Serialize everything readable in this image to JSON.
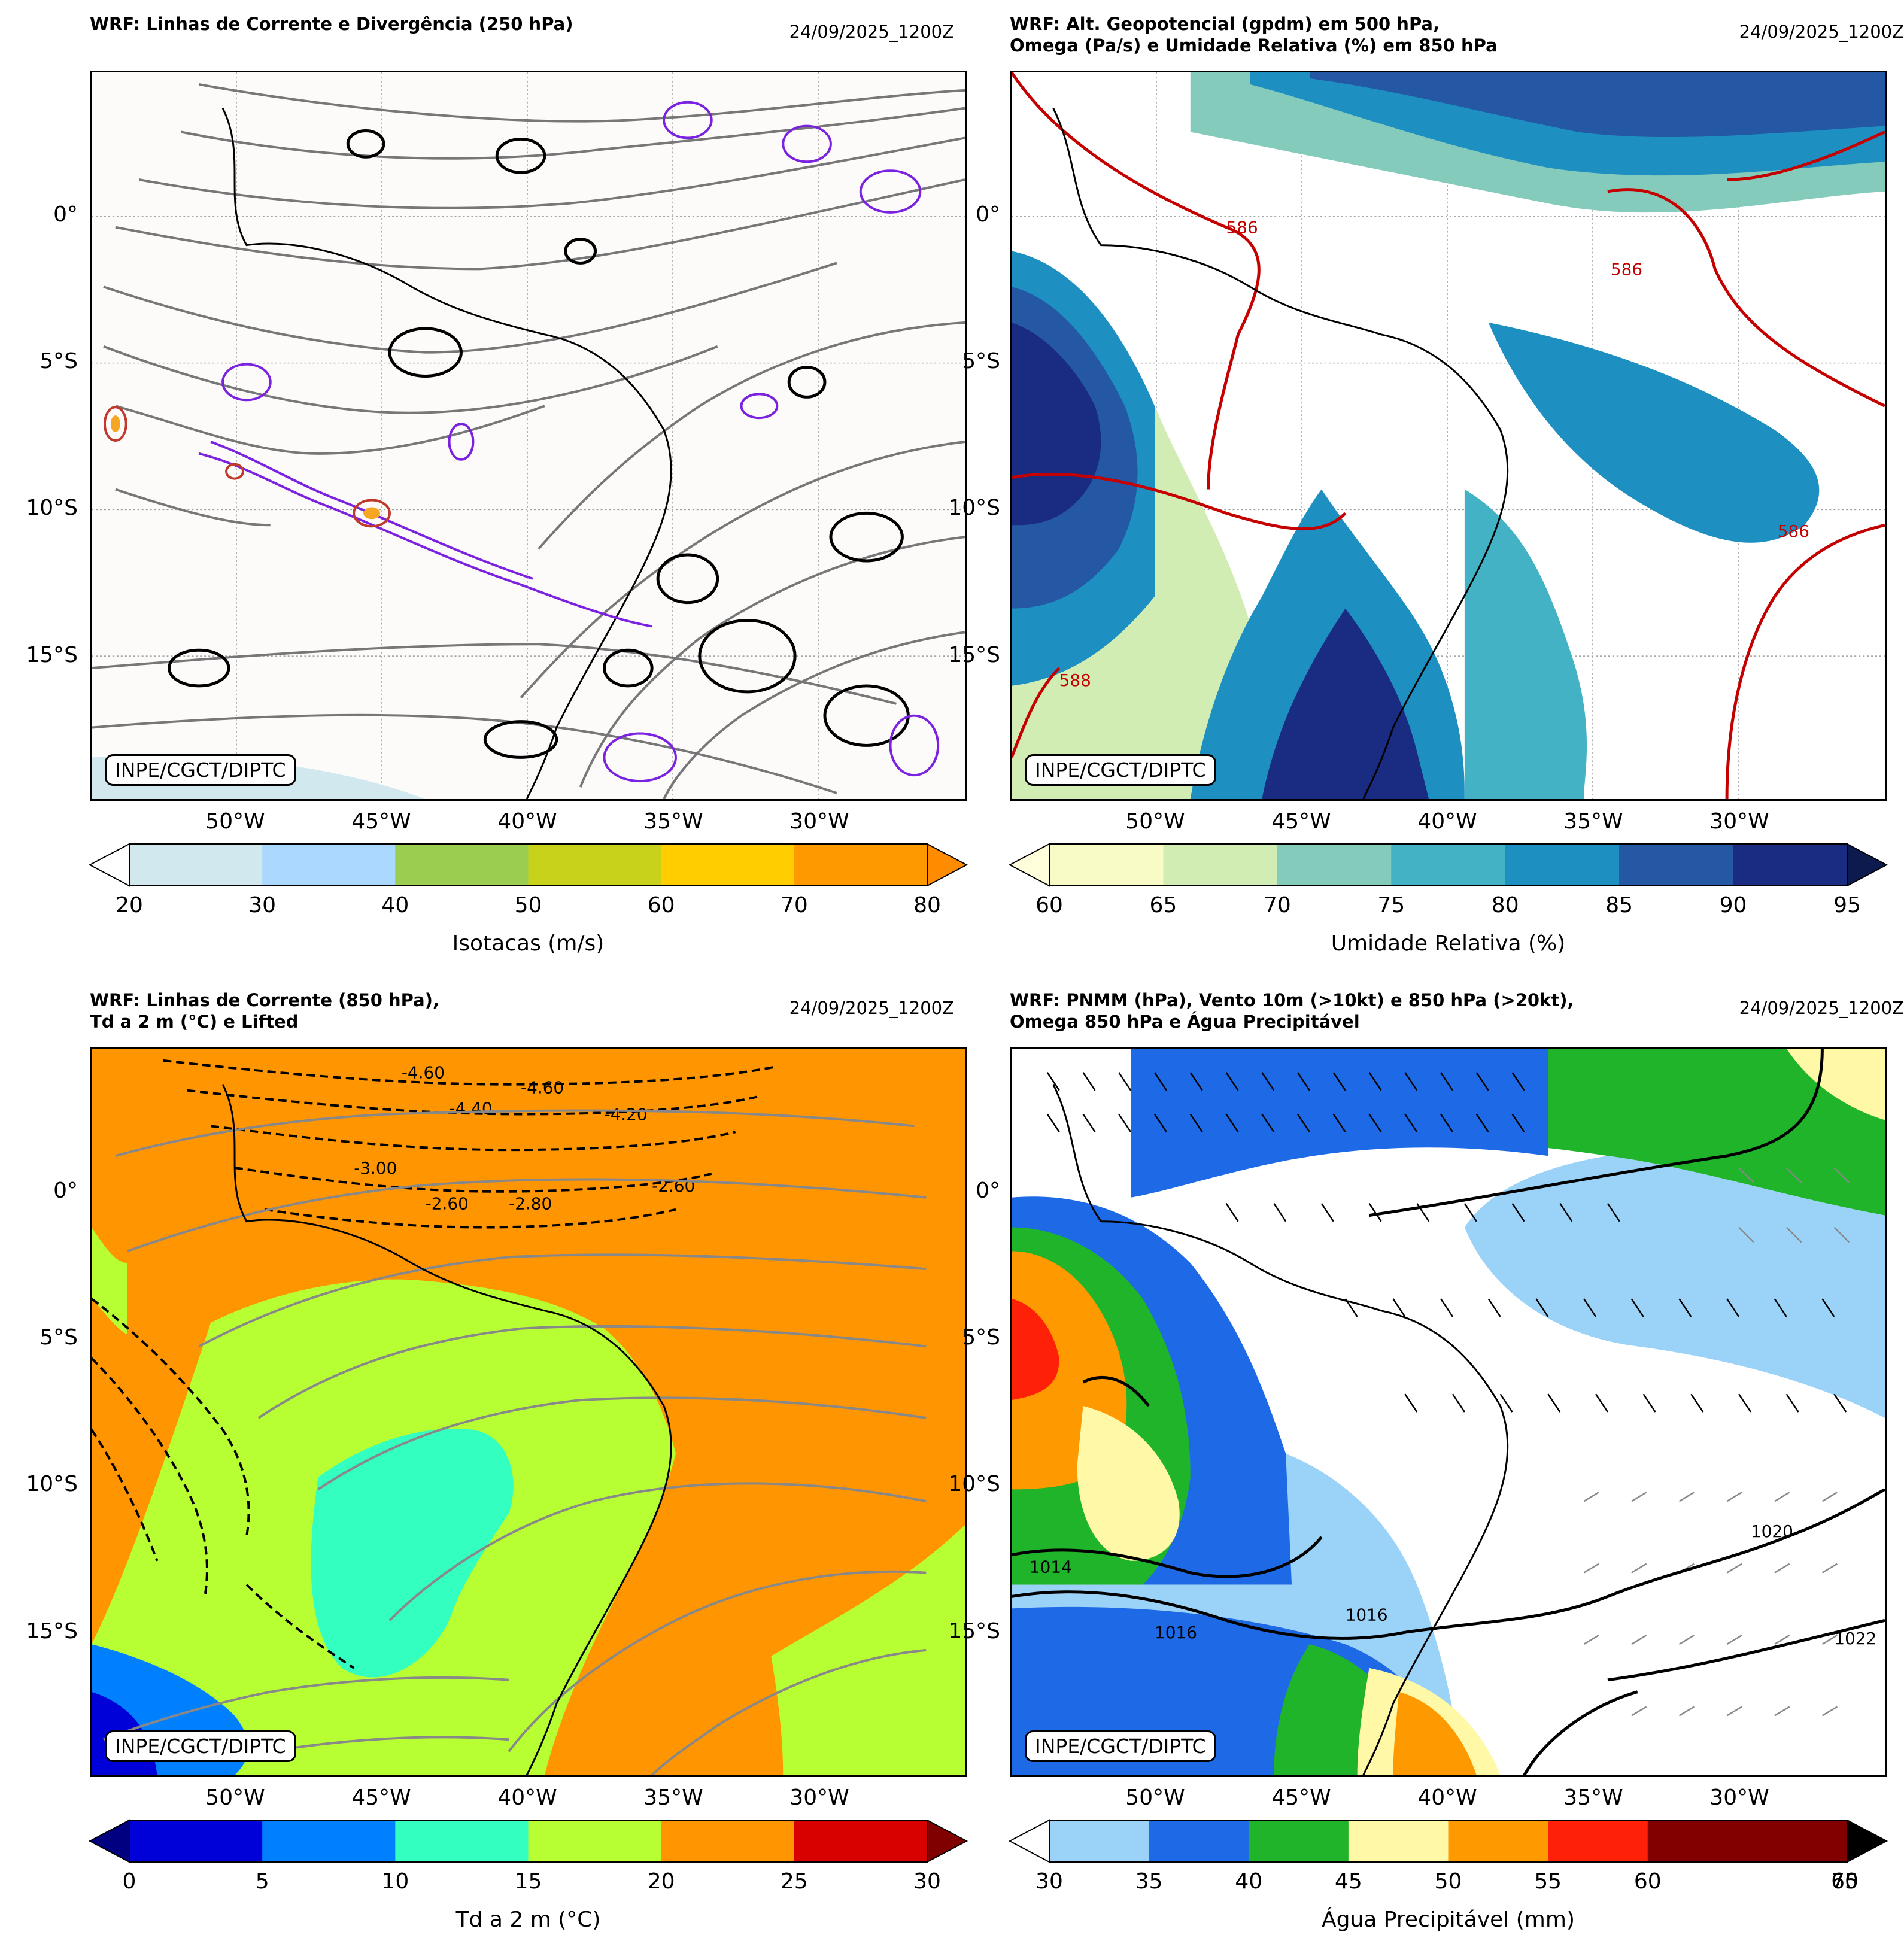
{
  "lat_labels": [
    "0°",
    "5°S",
    "10°S",
    "15°S"
  ],
  "lon_labels": [
    "50°W",
    "45°W",
    "40°W",
    "35°W",
    "30°W"
  ],
  "credit": "INPE/CGCT/DIPTC",
  "panels": {
    "tl": {
      "title": "WRF: Linhas de Corrente e Divergência (250 hPa)",
      "stamp": "24/09/2025_1200Z",
      "cbar_label": "Isotacas (m/s)",
      "cbar_ticks": [
        "20",
        "30",
        "40",
        "50",
        "60",
        "70",
        "80"
      ],
      "cbar_colors": [
        "#d1e8ee",
        "#aad8ff",
        "#9acd50",
        "#c8d21a",
        "#ffcd00",
        "#ff9900"
      ]
    },
    "tr": {
      "title": "WRF: Alt. Geopotencial (gpdm) em 500 hPa,\nOmega (Pa/s) e Umidade Relativa (%) em 850 hPa",
      "stamp": "24/09/2025_1200Z",
      "cbar_label": "Umidade Relativa (%)",
      "cbar_ticks": [
        "60",
        "65",
        "70",
        "75",
        "80",
        "85",
        "90",
        "95"
      ],
      "cbar_colors": [
        "#f8fbc6",
        "#d2edb3",
        "#84cbbb",
        "#42b2c4",
        "#1d8fc0",
        "#2457a4",
        "#1a2c82"
      ],
      "contour_labels": [
        "586",
        "586",
        "586",
        "588"
      ]
    },
    "bl": {
      "title": "WRF: Linhas de Corrente (850 hPa),\nTd a 2 m (°C) e Lifted",
      "stamp": "24/09/2025_1200Z",
      "cbar_label": "Td a 2 m (°C)",
      "cbar_ticks": [
        "0",
        "5",
        "10",
        "15",
        "20",
        "25",
        "30"
      ],
      "cbar_colors": [
        "#0000d8",
        "#0080ff",
        "#33ffc0",
        "#b7ff33",
        "#ff9500",
        "#d90000"
      ],
      "contour_labels": [
        "-4.60",
        "-4.40",
        "-4.60",
        "-4.20",
        "-3.00",
        "-2.60",
        "-2.80",
        "-2.60"
      ]
    },
    "br": {
      "title": "WRF: PNMM (hPa), Vento 10m (>10kt) e 850 hPa (>20kt),\nOmega 850 hPa e Água Precipitável",
      "stamp": "24/09/2025_1200Z",
      "cbar_label": "Água Precipitável (mm)",
      "cbar_ticks": [
        "30",
        "35",
        "40",
        "45",
        "50",
        "55",
        "60",
        "65",
        "70"
      ],
      "cbar_colors": [
        "#9ad2f8",
        "#1e6ae6",
        "#20b42a",
        "#fff8a6",
        "#ff9900",
        "#ff2008",
        "#820000"
      ],
      "contour_labels": [
        "1014",
        "1016",
        "1016",
        "1020",
        "1022"
      ]
    }
  }
}
